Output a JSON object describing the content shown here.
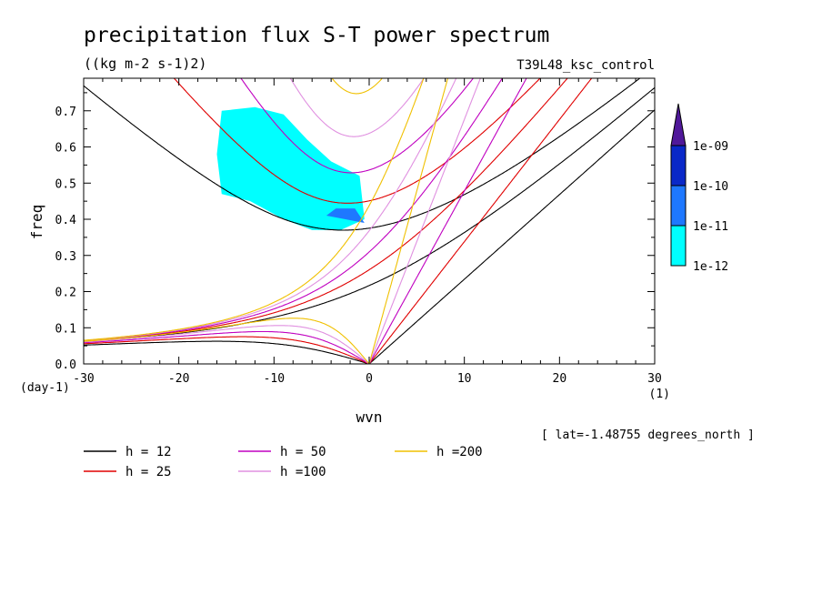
{
  "chart_data": {
    "type": "line",
    "title": "precipitation flux S-T power spectrum",
    "units": "((kg m-2 s-1)2)",
    "run_label": "T39L48_ksc_control",
    "xlabel": "wvn",
    "ylabel": "freq",
    "x_unit": "(1)",
    "y_unit": "(day-1)",
    "xlim": [
      -30,
      30
    ],
    "ylim": [
      0.0,
      0.79
    ],
    "x_ticks": [
      -30,
      -20,
      -10,
      0,
      10,
      20,
      30
    ],
    "x_tick_labels": [
      "-30",
      "-20",
      "-10",
      "0",
      "10",
      "20",
      "30"
    ],
    "y_ticks": [
      0.0,
      0.1,
      0.2,
      0.3,
      0.4,
      0.5,
      0.6,
      0.7
    ],
    "y_tick_labels": [
      "0.0",
      "0.1",
      "0.2",
      "0.3",
      "0.4",
      "0.5",
      "0.6",
      "0.7"
    ],
    "footnote": "[ lat=-1.48755 degrees_north ]",
    "colorbar": {
      "levels": [
        "1e-12",
        "1e-11",
        "1e-10",
        "1e-09"
      ],
      "colors": [
        "#00ffff",
        "#1e78ff",
        "#0a28c8",
        "#50189a"
      ]
    },
    "series": [
      {
        "name": "h = 12",
        "equivalent_depth_m": 12,
        "color": "#000000"
      },
      {
        "name": "h = 25",
        "equivalent_depth_m": 25,
        "color": "#e00000"
      },
      {
        "name": "h = 50",
        "equivalent_depth_m": 50,
        "color": "#c000c0"
      },
      {
        "name": "h =100",
        "equivalent_depth_m": 100,
        "color": "#e090e0"
      },
      {
        "name": "h =200",
        "equivalent_depth_m": 200,
        "color": "#f0c000"
      }
    ],
    "spectrum_contours": [
      {
        "level": "1e-12",
        "wvn": -15.5,
        "freq": 0.7
      },
      {
        "level": "1e-12",
        "wvn": -12.0,
        "freq": 0.71
      },
      {
        "level": "1e-12",
        "wvn": -9.0,
        "freq": 0.69
      },
      {
        "level": "1e-12",
        "wvn": -6.5,
        "freq": 0.62
      },
      {
        "level": "1e-12",
        "wvn": -4.0,
        "freq": 0.56
      },
      {
        "level": "1e-12",
        "wvn": -1.0,
        "freq": 0.52
      },
      {
        "level": "1e-12",
        "wvn": -0.5,
        "freq": 0.4
      },
      {
        "level": "1e-12",
        "wvn": -3.0,
        "freq": 0.37
      },
      {
        "level": "1e-12",
        "wvn": -6.0,
        "freq": 0.37
      },
      {
        "level": "1e-12",
        "wvn": -9.0,
        "freq": 0.4
      },
      {
        "level": "1e-12",
        "wvn": -12.5,
        "freq": 0.45
      },
      {
        "level": "1e-12",
        "wvn": -15.5,
        "freq": 0.47
      },
      {
        "level": "1e-12",
        "wvn": -16.0,
        "freq": 0.58
      },
      {
        "level": "1e-11",
        "wvn": -3.5,
        "freq": 0.43
      },
      {
        "level": "1e-11",
        "wvn": -1.5,
        "freq": 0.43
      },
      {
        "level": "1e-11",
        "wvn": -0.5,
        "freq": 0.39
      },
      {
        "level": "1e-11",
        "wvn": -2.5,
        "freq": 0.4
      },
      {
        "level": "1e-11",
        "wvn": -4.5,
        "freq": 0.41
      }
    ]
  }
}
